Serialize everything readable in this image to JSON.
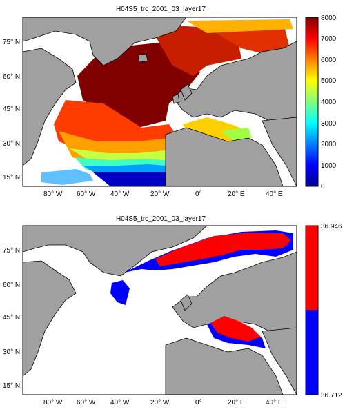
{
  "top_panel": {
    "title": "H04S5_trc_2001_03_layer17",
    "colorbar": {
      "min": 0,
      "max": 8000,
      "ticks": [
        "0",
        "1000",
        "2000",
        "3000",
        "4000",
        "5000",
        "6000",
        "7000",
        "8000"
      ]
    }
  },
  "bottom_panel": {
    "title": "H04S5_trc_2001_03_layer17",
    "colorbar": {
      "top_label": "36.946",
      "bottom_label": "36.712",
      "top_color": "#ff0000",
      "bottom_color": "#0000ff"
    }
  },
  "axes": {
    "lon_ticks": [
      "80° W",
      "60° W",
      "40° W",
      "20° W",
      "0°",
      "20° E",
      "40° E"
    ],
    "lat_ticks": [
      "75° N",
      "60° N",
      "45° N",
      "30° N",
      "15° N"
    ]
  },
  "colors": {
    "land": "#a0a0a0",
    "ocean_nodata": "#ffffff",
    "coast": "#000000"
  }
}
